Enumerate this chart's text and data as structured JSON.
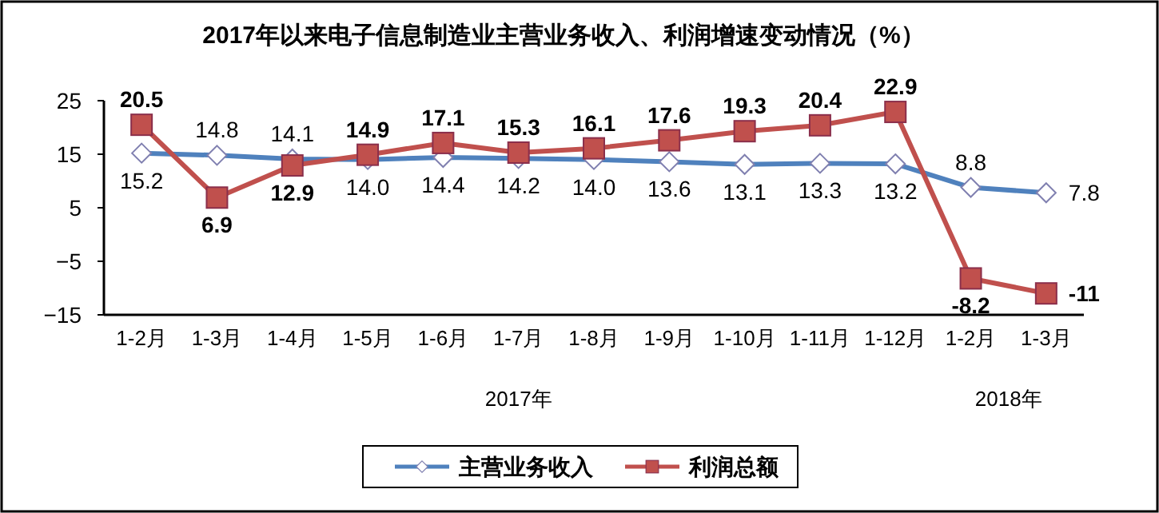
{
  "chart_data": {
    "type": "line",
    "title": "2017年以来电子信息制造业主营业务收入、利润增速变动情况（%）",
    "categories": [
      "1-2月",
      "1-3月",
      "1-4月",
      "1-5月",
      "1-6月",
      "1-7月",
      "1-8月",
      "1-9月",
      "1-10月",
      "1-11月",
      "1-12月",
      "1-2月",
      "1-3月"
    ],
    "series": [
      {
        "name": "主营业务收入",
        "color": "#4f81bd",
        "marker": "diamond",
        "values": [
          15.2,
          14.8,
          14.1,
          14.0,
          14.4,
          14.2,
          14.0,
          13.6,
          13.1,
          13.3,
          13.2,
          8.8,
          7.8
        ],
        "value_labels": [
          "15.2",
          "14.8",
          "14.1",
          "14.0",
          "14.4",
          "14.2",
          "14.0",
          "13.6",
          "13.1",
          "13.3",
          "13.2",
          "8.8",
          "7.8"
        ]
      },
      {
        "name": "利润总额",
        "color": "#c0504d",
        "marker": "square",
        "values": [
          20.5,
          6.9,
          12.9,
          14.9,
          17.1,
          15.3,
          16.1,
          17.6,
          19.3,
          20.4,
          22.9,
          -8.2,
          -11
        ],
        "value_labels": [
          "20.5",
          "6.9",
          "12.9",
          "14.9",
          "17.1",
          "15.3",
          "16.1",
          "17.6",
          "19.3",
          "20.4",
          "22.9",
          "-8.2",
          "-11"
        ]
      }
    ],
    "ylim": [
      -15,
      25
    ],
    "yticks": [
      25,
      15,
      5,
      {
        "value": -5,
        "label": "−5"
      },
      {
        "value": -15,
        "label": "−15"
      }
    ],
    "grid": false,
    "legend": "bottom",
    "line_style": "solid",
    "annotations": [
      "2017年",
      "2018年"
    ]
  }
}
